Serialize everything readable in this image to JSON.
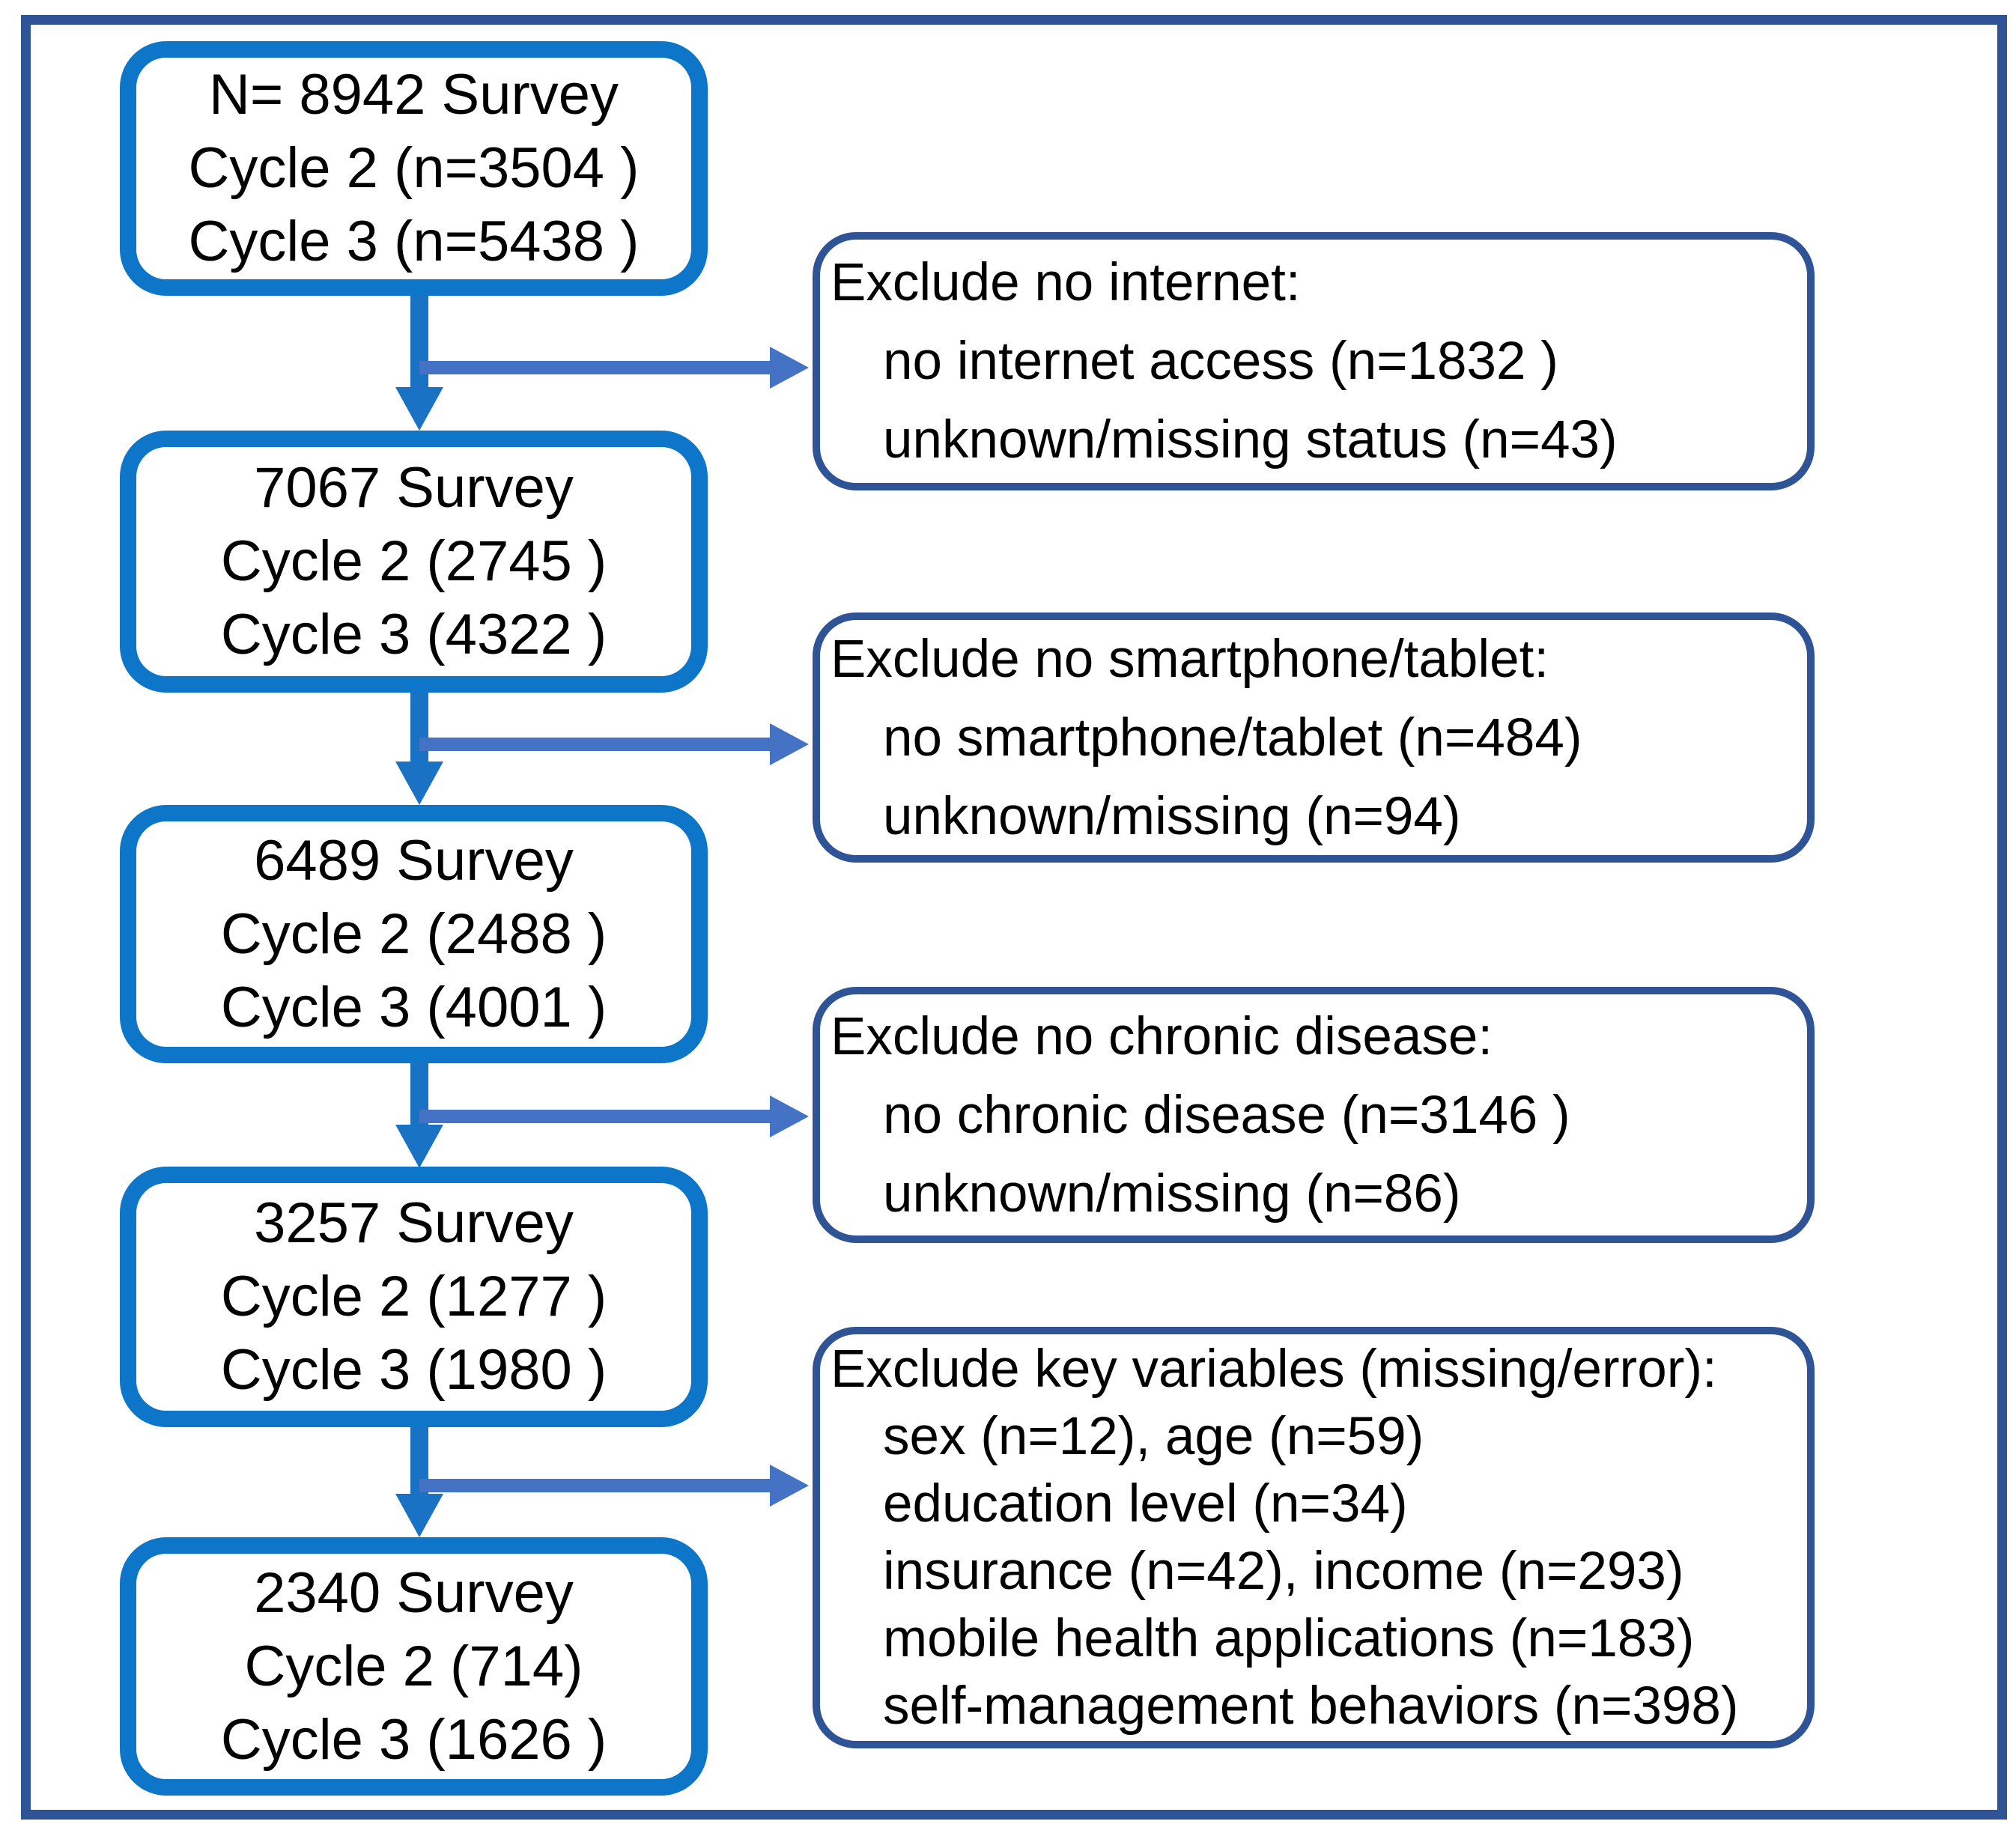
{
  "flow": {
    "steps": [
      {
        "lines": [
          "N= 8942 Survey",
          "Cycle 2 (n=3504 )",
          "Cycle 3 (n=5438 )"
        ]
      },
      {
        "lines": [
          "7067 Survey",
          "Cycle 2 (2745 )",
          "Cycle 3 (4322 )"
        ]
      },
      {
        "lines": [
          "6489 Survey",
          "Cycle 2 (2488 )",
          "Cycle 3 (4001 )"
        ]
      },
      {
        "lines": [
          "3257 Survey",
          "Cycle 2 (1277 )",
          "Cycle 3 (1980 )"
        ]
      },
      {
        "lines": [
          "2340 Survey",
          "Cycle 2 (714)",
          "Cycle 3 (1626 )"
        ]
      }
    ],
    "exclusions": [
      {
        "title": "Exclude no internet:",
        "items": [
          "no internet access (n=1832 )",
          "unknown/missing status (n=43)"
        ]
      },
      {
        "title": "Exclude no smartphone/tablet:",
        "items": [
          "no smartphone/tablet (n=484)",
          "unknown/missing (n=94)"
        ]
      },
      {
        "title": "Exclude no chronic disease:",
        "items": [
          "no chronic disease (n=3146 )",
          "unknown/missing (n=86)"
        ]
      },
      {
        "title": "Exclude key variables (missing/error):",
        "items": [
          "sex (n=12), age (n=59)",
          "education level (n=34)",
          "insurance (n=42), income (n=293)",
          "mobile health applications (n=183)",
          "self-management behaviors (n=398)"
        ]
      }
    ],
    "colors": {
      "survey_box_border": "#0d76c8",
      "exclude_box_border": "#2f5496",
      "outer_frame": "#2f5496",
      "vertical_arrow": "#1a72c4",
      "horizontal_arrow": "#4472c4",
      "text": "#000000",
      "background": "#ffffff"
    }
  }
}
